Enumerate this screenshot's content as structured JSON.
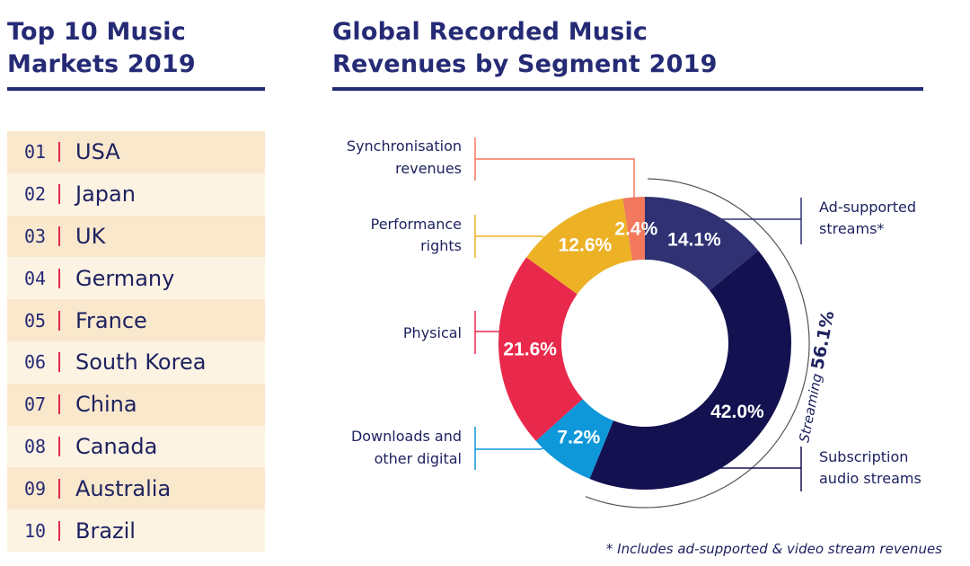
{
  "left_panel": {
    "title_lines": [
      "Top 10 Music",
      "Markets 2019"
    ],
    "markets": [
      {
        "rank": "01",
        "country": "USA"
      },
      {
        "rank": "02",
        "country": "Japan"
      },
      {
        "rank": "03",
        "country": "UK"
      },
      {
        "rank": "04",
        "country": "Germany"
      },
      {
        "rank": "05",
        "country": "France"
      },
      {
        "rank": "06",
        "country": "South Korea"
      },
      {
        "rank": "07",
        "country": "China"
      },
      {
        "rank": "08",
        "country": "Canada"
      },
      {
        "rank": "09",
        "country": "Australia"
      },
      {
        "rank": "10",
        "country": "Brazil"
      }
    ]
  },
  "right_panel": {
    "title_lines": [
      "Global Recorded Music",
      "Revenues by Segment 2019"
    ],
    "footnote": "* Includes ad-supported & video stream revenues"
  },
  "chart_data": {
    "type": "pie",
    "variant": "donut",
    "segments": [
      {
        "name_lines": [
          "Ad-supported",
          "streams*"
        ],
        "value": 14.1,
        "label": "14.1%",
        "color": "#2f3173"
      },
      {
        "name_lines": [
          "Subscription",
          "audio streams"
        ],
        "value": 42.0,
        "label": "42.0%",
        "color": "#131150"
      },
      {
        "name_lines": [
          "Downloads and",
          "other digital"
        ],
        "value": 7.2,
        "label": "7.2%",
        "color": "#0e97d9"
      },
      {
        "name_lines": [
          "Physical"
        ],
        "value": 21.6,
        "label": "21.6%",
        "color": "#e9294c"
      },
      {
        "name_lines": [
          "Performance",
          "rights"
        ],
        "value": 12.6,
        "label": "12.6%",
        "color": "#ecb125"
      },
      {
        "name_lines": [
          "Synchronisation",
          "revenues"
        ],
        "value": 2.4,
        "label": "2.4%",
        "color": "#f2785e"
      }
    ],
    "streaming_group": {
      "label": "Streaming",
      "value_label": "56.1%",
      "value": 56.1
    }
  }
}
